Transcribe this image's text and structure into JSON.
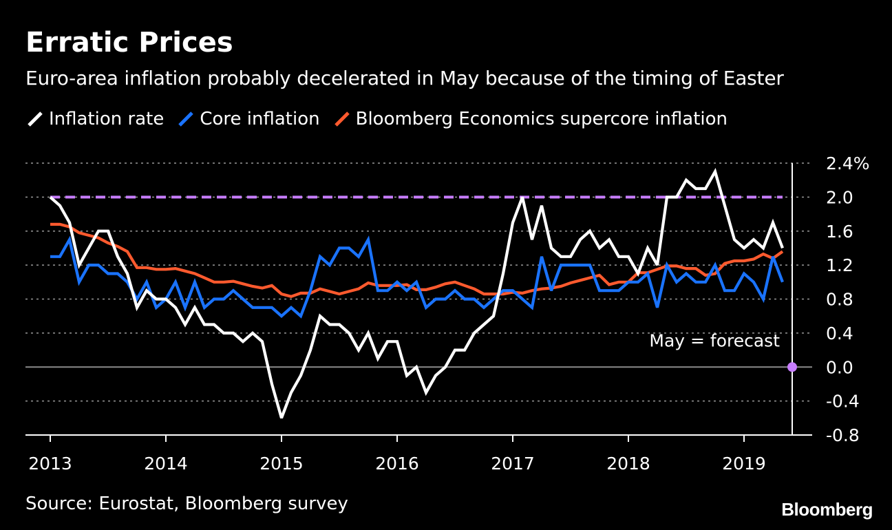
{
  "colors": {
    "background": "#000000",
    "inflation": "#ffffff",
    "core": "#1a73ff",
    "supercore": "#ff5a2e",
    "target": "#c77dff",
    "grid": "#9a9a9a",
    "text": "#ffffff"
  },
  "brand": "Bloomberg",
  "chart_data": {
    "type": "line",
    "title": "Erratic Prices",
    "subtitle": "Euro-area inflation probably decelerated in May because of the timing of Easter",
    "source": "Source: Eurostat, Bloomberg survey",
    "annotation": "May = forecast",
    "legend": [
      {
        "name": "Inflation rate",
        "color": "#ffffff"
      },
      {
        "name": "Core inflation",
        "color": "#1a73ff"
      },
      {
        "name": "Bloomberg Economics supercore inflation",
        "color": "#ff5a2e"
      }
    ],
    "x_ticks": [
      "2013",
      "2014",
      "2015",
      "2016",
      "2017",
      "2018",
      "2019"
    ],
    "x_start": "2013-01",
    "x_range_months": [
      0,
      76.5
    ],
    "y_ticks": [
      "-0.8",
      "-0.4",
      "0.0",
      "0.4",
      "0.8",
      "1.2",
      "1.6",
      "2.0",
      "2.4%"
    ],
    "y_tick_values": [
      -0.8,
      -0.4,
      0.0,
      0.4,
      0.8,
      1.2,
      1.6,
      2.0,
      2.4
    ],
    "ylim": [
      -0.8,
      2.4
    ],
    "target_line": {
      "value": 2.0,
      "from_month": 0,
      "to_month": 76
    },
    "forecast_point": {
      "month": 77,
      "value": 0.0
    },
    "series": [
      {
        "name": "Inflation rate",
        "values": [
          2.0,
          1.9,
          1.7,
          1.2,
          1.4,
          1.6,
          1.6,
          1.3,
          1.1,
          0.7,
          0.9,
          0.8,
          0.8,
          0.7,
          0.5,
          0.7,
          0.5,
          0.5,
          0.4,
          0.4,
          0.3,
          0.4,
          0.3,
          -0.2,
          -0.6,
          -0.3,
          -0.1,
          0.2,
          0.6,
          0.5,
          0.5,
          0.4,
          0.2,
          0.4,
          0.1,
          0.3,
          0.3,
          -0.1,
          0.0,
          -0.3,
          -0.1,
          0.0,
          0.2,
          0.2,
          0.4,
          0.5,
          0.6,
          1.1,
          1.7,
          2.0,
          1.5,
          1.9,
          1.4,
          1.3,
          1.3,
          1.5,
          1.6,
          1.4,
          1.5,
          1.3,
          1.3,
          1.1,
          1.4,
          1.2,
          2.0,
          2.0,
          2.2,
          2.1,
          2.1,
          2.3,
          1.9,
          1.5,
          1.4,
          1.5,
          1.4,
          1.7,
          1.4
        ]
      },
      {
        "name": "Core inflation",
        "values": [
          1.3,
          1.3,
          1.5,
          1.0,
          1.2,
          1.2,
          1.1,
          1.1,
          1.0,
          0.8,
          1.0,
          0.7,
          0.8,
          1.0,
          0.7,
          1.0,
          0.7,
          0.8,
          0.8,
          0.9,
          0.8,
          0.7,
          0.7,
          0.7,
          0.6,
          0.7,
          0.6,
          0.9,
          1.3,
          1.2,
          1.4,
          1.4,
          1.3,
          1.5,
          0.9,
          0.9,
          1.0,
          0.9,
          1.0,
          0.7,
          0.8,
          0.8,
          0.9,
          0.8,
          0.8,
          0.7,
          0.8,
          0.9,
          0.9,
          0.8,
          0.7,
          1.3,
          0.9,
          1.2,
          1.2,
          1.2,
          1.2,
          0.9,
          0.9,
          0.9,
          1.0,
          1.0,
          1.1,
          0.7,
          1.2,
          1.0,
          1.1,
          1.0,
          1.0,
          1.2,
          0.9,
          0.9,
          1.1,
          1.0,
          0.8,
          1.3,
          1.0
        ]
      },
      {
        "name": "Bloomberg Economics supercore inflation",
        "values": [
          1.68,
          1.68,
          1.65,
          1.58,
          1.55,
          1.52,
          1.46,
          1.42,
          1.36,
          1.17,
          1.17,
          1.15,
          1.15,
          1.16,
          1.13,
          1.1,
          1.05,
          1.0,
          1.0,
          1.01,
          0.98,
          0.95,
          0.93,
          0.96,
          0.86,
          0.83,
          0.87,
          0.87,
          0.92,
          0.89,
          0.86,
          0.89,
          0.92,
          0.99,
          0.96,
          0.96,
          0.96,
          0.97,
          0.91,
          0.91,
          0.94,
          0.98,
          1.0,
          0.96,
          0.92,
          0.86,
          0.86,
          0.86,
          0.88,
          0.87,
          0.9,
          0.92,
          0.93,
          0.95,
          0.99,
          1.02,
          1.05,
          1.08,
          0.97,
          1.0,
          1.0,
          1.11,
          1.11,
          1.15,
          1.19,
          1.19,
          1.16,
          1.16,
          1.08,
          1.1,
          1.22,
          1.25,
          1.25,
          1.27,
          1.33,
          1.28,
          1.36
        ]
      }
    ]
  }
}
